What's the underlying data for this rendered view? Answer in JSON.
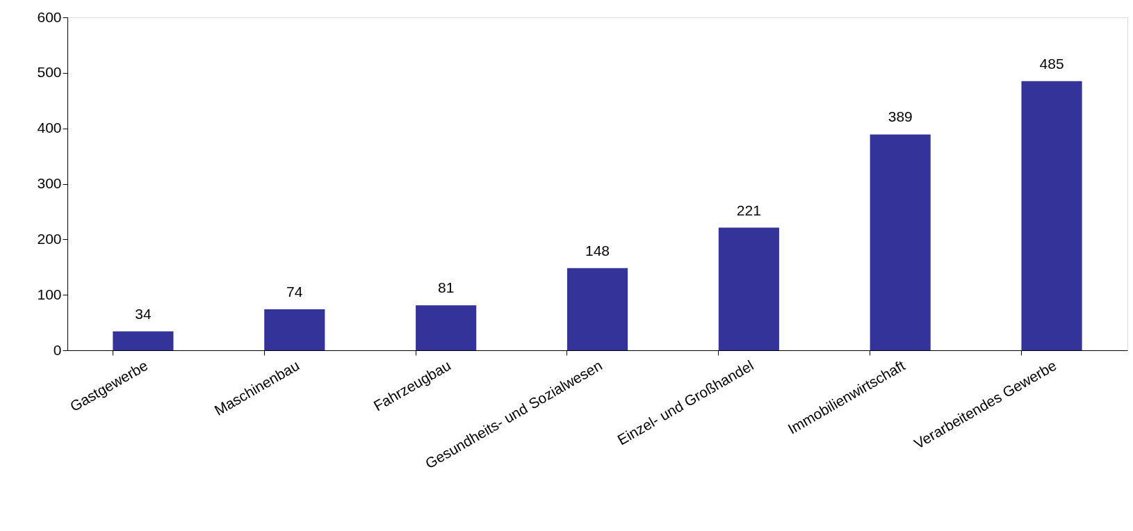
{
  "chart_data": {
    "type": "bar",
    "categories": [
      "Gastgewerbe",
      "Maschinenbau",
      "Fahrzeugbau",
      "Gesundheits- und Sozialwesen",
      "Einzel- und Großhandel",
      "Immobilienwirtschaft",
      "Verarbeitendes Gewerbe"
    ],
    "values": [
      34,
      74,
      81,
      148,
      221,
      389,
      485
    ],
    "color": "#333399",
    "ylim": [
      0,
      600
    ],
    "yticks": [
      0,
      100,
      200,
      300,
      400,
      500,
      600
    ],
    "grid": false,
    "data_labels": true
  }
}
